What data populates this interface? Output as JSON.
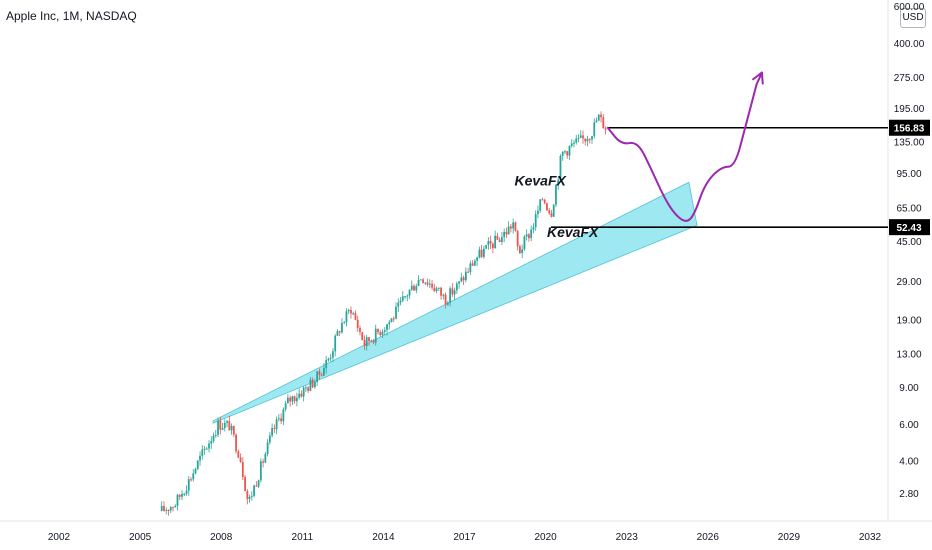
{
  "header": {
    "title": "Apple Inc, 1M, NASDAQ"
  },
  "currency": "USD",
  "chart_data": {
    "type": "candlestick",
    "title": "Apple Inc, 1M, NASDAQ",
    "y_scale": "log",
    "ylim": [
      2.2,
      620
    ],
    "y_ticks": [
      "600.00",
      "400.00",
      "275.00",
      "195.00",
      "135.00",
      "95.00",
      "65.00",
      "45.00",
      "29.00",
      "19.00",
      "13.00",
      "9.00",
      "6.00",
      "4.00",
      "2.80"
    ],
    "y_tick_values": [
      600,
      400,
      275,
      195,
      135,
      95,
      65,
      45,
      29,
      19,
      13,
      9,
      6,
      4,
      2.8
    ],
    "x_ticks": [
      "2002",
      "2005",
      "2008",
      "2011",
      "2014",
      "2017",
      "2020",
      "2023",
      "2026",
      "2029",
      "2032"
    ],
    "x_tick_values": [
      2002,
      2005,
      2008,
      2011,
      2014,
      2017,
      2020,
      2023,
      2026,
      2029,
      2032
    ],
    "xlim": [
      2000.4,
      2033.0
    ],
    "price_path": [
      [
        2005.8,
        2.3
      ],
      [
        2006.3,
        2.5
      ],
      [
        2006.8,
        3.2
      ],
      [
        2007.3,
        4.3
      ],
      [
        2007.9,
        6.0
      ],
      [
        2008.3,
        5.9
      ],
      [
        2008.7,
        4.2
      ],
      [
        2009.0,
        2.5
      ],
      [
        2009.4,
        3.5
      ],
      [
        2009.9,
        5.5
      ],
      [
        2010.5,
        7.8
      ],
      [
        2011.0,
        8.6
      ],
      [
        2011.5,
        9.8
      ],
      [
        2012.0,
        12.5
      ],
      [
        2012.4,
        17.5
      ],
      [
        2012.8,
        21.5
      ],
      [
        2013.3,
        14.5
      ],
      [
        2013.8,
        16.5
      ],
      [
        2014.3,
        19.0
      ],
      [
        2014.9,
        25.5
      ],
      [
        2015.4,
        30.5
      ],
      [
        2015.9,
        27.0
      ],
      [
        2016.3,
        23.8
      ],
      [
        2016.8,
        28.0
      ],
      [
        2017.4,
        37.0
      ],
      [
        2017.9,
        42.5
      ],
      [
        2018.4,
        47.5
      ],
      [
        2018.8,
        55.0
      ],
      [
        2019.0,
        39.5
      ],
      [
        2019.5,
        52.0
      ],
      [
        2019.9,
        73.0
      ],
      [
        2020.2,
        61.0
      ],
      [
        2020.6,
        118.0
      ],
      [
        2021.0,
        130.0
      ],
      [
        2021.4,
        138.0
      ],
      [
        2021.7,
        150.0
      ],
      [
        2021.95,
        178.0
      ],
      [
        2022.1,
        166.0
      ],
      [
        2022.25,
        156.8
      ]
    ],
    "annotations": {
      "horizontal_levels": [
        {
          "label": "156.83",
          "value": 156.83,
          "from_x": 2022.3
        },
        {
          "label": "52.43",
          "value": 52.43,
          "from_x": 2020.2
        }
      ],
      "texts": [
        {
          "text": "KevaFX",
          "x": 2019.8,
          "y": 83
        },
        {
          "text": "KevaFX",
          "x": 2021.0,
          "y": 47
        }
      ],
      "trend_channel": {
        "color": "#7ee0ec",
        "lower": [
          [
            2007.7,
            6.05
          ],
          [
            2025.6,
            53.5
          ]
        ],
        "upper": [
          [
            2007.7,
            6.2
          ],
          [
            2025.3,
            86.0
          ]
        ]
      },
      "projection_path": {
        "color": "#9c27b0",
        "points": [
          [
            2022.3,
            156.8
          ],
          [
            2022.8,
            130.0
          ],
          [
            2023.4,
            135.0
          ],
          [
            2023.9,
            100.0
          ],
          [
            2024.4,
            72.0
          ],
          [
            2024.8,
            60.0
          ],
          [
            2025.2,
            55.0
          ],
          [
            2025.5,
            60.0
          ],
          [
            2025.9,
            85.0
          ],
          [
            2026.5,
            102.0
          ],
          [
            2027.0,
            102.0
          ],
          [
            2027.4,
            160.0
          ],
          [
            2027.8,
            252.0
          ]
        ],
        "arrow_to": [
          2028.0,
          288.0
        ]
      }
    },
    "colors": {
      "up": "#26a69a",
      "down": "#ef5350",
      "axis_text": "#131722",
      "levels": "#000000"
    }
  }
}
